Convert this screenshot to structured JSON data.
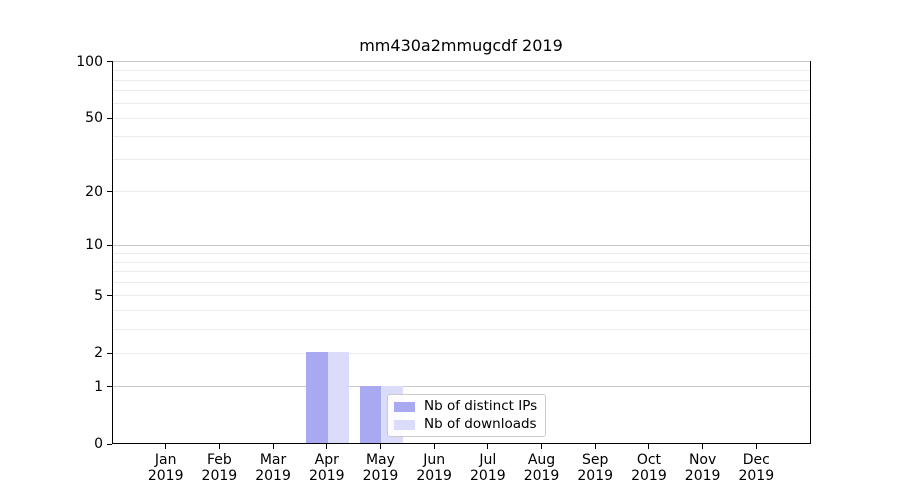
{
  "figure": {
    "title": "mm430a2mmugcdf 2019",
    "background": "#ffffff"
  },
  "axes": {
    "y_tick_values": [
      0,
      1,
      2,
      5,
      10,
      20,
      50,
      100
    ],
    "x_months": [
      "Jan",
      "Feb",
      "Mar",
      "Apr",
      "May",
      "Jun",
      "Jul",
      "Aug",
      "Sep",
      "Oct",
      "Nov",
      "Dec"
    ],
    "x_year": "2019"
  },
  "legend": {
    "items": [
      {
        "label": "Nb of distinct IPs",
        "color": "#a9a9f2"
      },
      {
        "label": "Nb of downloads",
        "color": "#dbdbfa"
      }
    ]
  },
  "colors": {
    "distinct_ips": "#a9a9f2",
    "downloads": "#dbdbfa",
    "grid_minor": "#ebebeb",
    "grid_major": "#c9c9c9",
    "spine": "#000000"
  },
  "chart_data": {
    "type": "bar",
    "title": "mm430a2mmugcdf 2019",
    "categories": [
      "Jan 2019",
      "Feb 2019",
      "Mar 2019",
      "Apr 2019",
      "May 2019",
      "Jun 2019",
      "Jul 2019",
      "Aug 2019",
      "Sep 2019",
      "Oct 2019",
      "Nov 2019",
      "Dec 2019"
    ],
    "series": [
      {
        "name": "Nb of distinct IPs",
        "color": "#a9a9f2",
        "values": [
          0,
          0,
          0,
          2,
          1,
          0,
          0,
          0,
          0,
          0,
          0,
          0
        ]
      },
      {
        "name": "Nb of downloads",
        "color": "#dbdbfa",
        "values": [
          0,
          0,
          0,
          2,
          1,
          0,
          0,
          0,
          0,
          0,
          0,
          0
        ]
      }
    ],
    "yscale": "log1p",
    "ylim": [
      0,
      112
    ],
    "y_ticks": [
      0,
      1,
      2,
      5,
      10,
      20,
      50,
      100
    ],
    "y_major_gridlines": [
      1,
      10,
      100
    ],
    "y_minor_gridlines": [
      2,
      3,
      4,
      5,
      6,
      7,
      8,
      9,
      20,
      30,
      40,
      50,
      60,
      70,
      80,
      90
    ],
    "grid": true,
    "legend_position": "lower-center-inside",
    "xlabel": "",
    "ylabel": ""
  }
}
